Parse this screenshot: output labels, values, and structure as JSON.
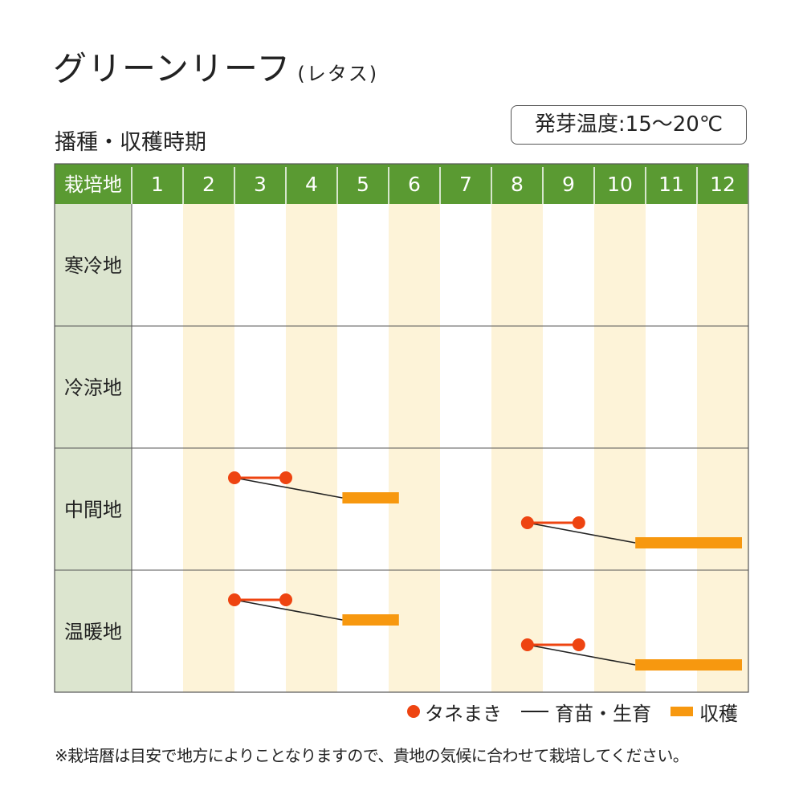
{
  "title": "グリーンリーフ",
  "title_sub": "(レタス)",
  "subtitle": "播種・収穫時期",
  "germination": "発芽温度:15〜20℃",
  "colors": {
    "header": "#5a9a32",
    "label_col": "#dce5cf",
    "stripe": "#fdf3d8",
    "sow": "#ee4411",
    "grow": "#222222",
    "harvest": "#f7980f",
    "border": "#555555"
  },
  "chart_data": {
    "type": "table",
    "corner_label": "栽培地",
    "months": [
      "1",
      "2",
      "3",
      "4",
      "5",
      "6",
      "7",
      "8",
      "9",
      "10",
      "11",
      "12"
    ],
    "regions": [
      {
        "name": "寒冷地",
        "schedules": []
      },
      {
        "name": "冷涼地",
        "schedules": []
      },
      {
        "name": "中間地",
        "schedules": [
          {
            "sow": [
              3.0,
              4.0
            ],
            "harvest": [
              5.1,
              6.2
            ]
          },
          {
            "sow": [
              8.7,
              9.7
            ],
            "harvest": [
              10.8,
              13.0
            ]
          }
        ]
      },
      {
        "name": "温暖地",
        "schedules": [
          {
            "sow": [
              3.0,
              4.0
            ],
            "harvest": [
              5.1,
              6.2
            ]
          },
          {
            "sow": [
              8.7,
              9.7
            ],
            "harvest": [
              10.8,
              13.0
            ]
          }
        ]
      }
    ],
    "legend": {
      "sow": "タネまき",
      "grow": "育苗・生育",
      "harvest": "収穫"
    }
  },
  "note": "※栽培暦は目安で地方によりことなりますので、貴地の気候に合わせて栽培してください。"
}
